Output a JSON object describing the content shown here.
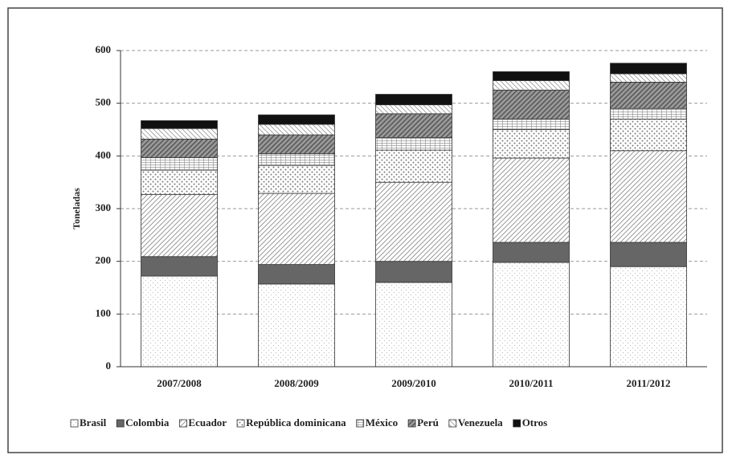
{
  "chart_data": {
    "type": "stacked_bar",
    "y_label": "Toneladas",
    "categories": [
      "2007/2008",
      "2008/2009",
      "2009/2010",
      "2010/2011",
      "2011/2012"
    ],
    "series": [
      {
        "name": "Brasil",
        "color": "#bbbbbb",
        "values": [
          172,
          157,
          160,
          198,
          190
        ]
      },
      {
        "name": "Colombia",
        "color": "#666666",
        "values": [
          37,
          37,
          40,
          38,
          46
        ]
      },
      {
        "name": "Ecuador",
        "color": "#888888",
        "values": [
          118,
          135,
          150,
          160,
          174
        ]
      },
      {
        "name": "República dominicana",
        "color": "#777777",
        "values": [
          46,
          53,
          61,
          54,
          60
        ]
      },
      {
        "name": "México",
        "color": "#999999",
        "values": [
          24,
          22,
          24,
          20,
          20
        ]
      },
      {
        "name": "Perú",
        "color": "#555555",
        "values": [
          35,
          36,
          45,
          55,
          50
        ]
      },
      {
        "name": "Venezuela",
        "color": "#999999",
        "values": [
          20,
          20,
          17,
          18,
          16
        ]
      },
      {
        "name": "Otros",
        "color": "#111111",
        "values": [
          15,
          18,
          20,
          17,
          20
        ]
      }
    ],
    "ylim": [
      0,
      600
    ],
    "yticks": [
      0,
      100,
      200,
      300,
      400,
      500,
      600
    ],
    "grid": true
  }
}
